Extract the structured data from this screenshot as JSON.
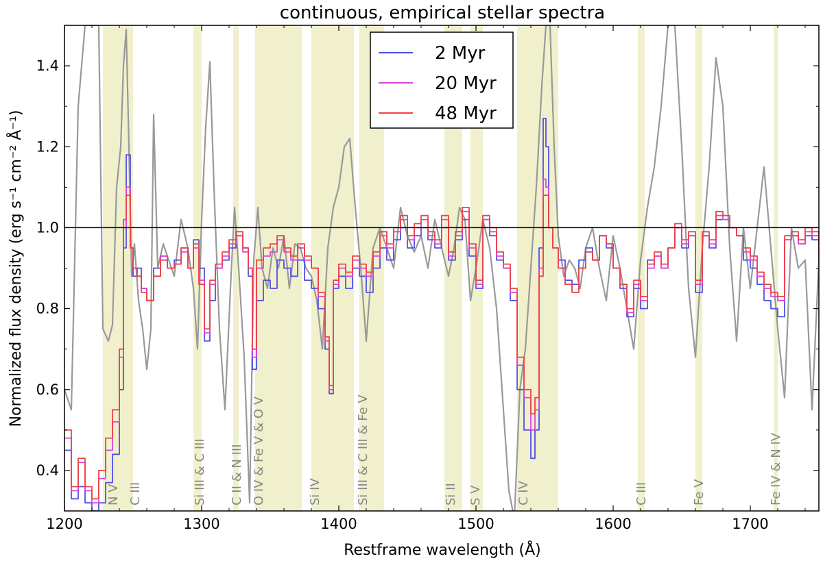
{
  "chart_data": {
    "type": "line",
    "title": "continuous, empirical stellar spectra",
    "xlabel": "Restframe wavelength (Å)",
    "ylabel": "Normalized flux density (erg s⁻¹ cm⁻² Å⁻¹)",
    "xlim": [
      1200,
      1750
    ],
    "ylim": [
      0.3,
      1.5
    ],
    "xticks": [
      1200,
      1300,
      1400,
      1500,
      1600,
      1700
    ],
    "yticks": [
      0.4,
      0.6,
      0.8,
      1.0,
      1.2,
      1.4
    ],
    "ytick_labels": [
      "0.4",
      "0.6",
      "0.8",
      "1.0",
      "1.2",
      "1.4"
    ],
    "reference_line": 1.0,
    "legend_position": "top-center",
    "colors": {
      "band": "#f0f0cc",
      "observed": "#999999",
      "reference": "#000000"
    },
    "bands": [
      {
        "x0": 1228,
        "x1": 1250,
        "label": "N V"
      },
      {
        "x0": 1228,
        "x1": 1250,
        "label": "C III"
      },
      {
        "x0": 1294,
        "x1": 1300,
        "label": "Si III & C III"
      },
      {
        "x0": 1323,
        "x1": 1327,
        "label": "C II & N III"
      },
      {
        "x0": 1339,
        "x1": 1373,
        "label": "O IV & Fe V & O V"
      },
      {
        "x0": 1380,
        "x1": 1411,
        "label": "Si IV"
      },
      {
        "x0": 1415,
        "x1": 1433,
        "label": "Si III & C III & Fe V"
      },
      {
        "x0": 1477,
        "x1": 1490,
        "label": "Si II"
      },
      {
        "x0": 1496,
        "x1": 1505,
        "label": "S V"
      },
      {
        "x0": 1530,
        "x1": 1560,
        "label": "C IV"
      },
      {
        "x0": 1618,
        "x1": 1623,
        "label": "C III"
      },
      {
        "x0": 1660,
        "x1": 1665,
        "label": "Fe V"
      },
      {
        "x0": 1717,
        "x1": 1720,
        "label": "Fe IV & N IV"
      }
    ],
    "band_label_x": [
      1235,
      1251,
      1298,
      1325,
      1341,
      1382,
      1417,
      1481,
      1499,
      1534,
      1620,
      1662,
      1718
    ],
    "series": [
      {
        "name": "observed",
        "legend": false,
        "color": "#999999",
        "x": [
          1200,
          1205,
          1210,
          1215,
          1220,
          1225,
          1228,
          1232,
          1235,
          1238,
          1241,
          1243,
          1245,
          1247,
          1249,
          1251,
          1254,
          1257,
          1260,
          1263,
          1265,
          1268,
          1272,
          1276,
          1280,
          1285,
          1290,
          1294,
          1297,
          1300,
          1303,
          1306,
          1309,
          1313,
          1317,
          1321,
          1324,
          1327,
          1331,
          1335,
          1338,
          1341,
          1344,
          1348,
          1352,
          1356,
          1360,
          1364,
          1368,
          1372,
          1376,
          1380,
          1384,
          1388,
          1392,
          1396,
          1400,
          1404,
          1408,
          1412,
          1416,
          1420,
          1425,
          1430,
          1435,
          1440,
          1445,
          1450,
          1455,
          1460,
          1465,
          1470,
          1475,
          1480,
          1484,
          1488,
          1492,
          1496,
          1500,
          1505,
          1510,
          1515,
          1520,
          1524,
          1528,
          1532,
          1536,
          1540,
          1544,
          1548,
          1551,
          1554,
          1557,
          1560,
          1564,
          1568,
          1572,
          1576,
          1580,
          1585,
          1590,
          1595,
          1600,
          1605,
          1610,
          1615,
          1620,
          1625,
          1630,
          1635,
          1640,
          1645,
          1650,
          1655,
          1660,
          1665,
          1670,
          1675,
          1680,
          1685,
          1690,
          1695,
          1700,
          1705,
          1710,
          1715,
          1720,
          1725,
          1730,
          1735,
          1740,
          1745,
          1750
        ],
        "y": [
          0.6,
          0.55,
          1.3,
          1.5,
          1.5,
          1.5,
          0.75,
          0.72,
          0.76,
          1.1,
          1.2,
          1.4,
          1.49,
          1.2,
          0.88,
          0.96,
          0.82,
          0.75,
          0.65,
          0.75,
          1.28,
          0.9,
          0.96,
          0.92,
          0.88,
          1.02,
          0.95,
          0.85,
          0.7,
          1.02,
          1.25,
          1.41,
          1.1,
          0.75,
          0.55,
          0.85,
          1.05,
          0.9,
          0.68,
          0.32,
          0.92,
          1.05,
          0.9,
          0.85,
          0.95,
          0.9,
          0.98,
          0.85,
          0.96,
          0.95,
          0.9,
          0.88,
          0.82,
          0.7,
          0.95,
          1.05,
          1.1,
          1.2,
          1.22,
          1.05,
          0.9,
          0.72,
          0.95,
          1.0,
          0.95,
          0.9,
          1.05,
          0.98,
          0.94,
          0.98,
          0.9,
          1.02,
          0.95,
          0.88,
          0.95,
          1.05,
          1.02,
          0.82,
          0.9,
          1.02,
          0.95,
          0.8,
          0.55,
          0.35,
          0.28,
          0.6,
          0.7,
          0.9,
          1.1,
          1.35,
          1.5,
          1.5,
          1.2,
          0.98,
          0.88,
          0.92,
          0.9,
          0.85,
          0.95,
          1.0,
          0.9,
          0.82,
          0.98,
          0.9,
          0.8,
          0.7,
          0.92,
          1.05,
          1.15,
          1.3,
          1.5,
          1.5,
          1.2,
          0.85,
          0.68,
          0.95,
          1.15,
          1.42,
          1.3,
          0.95,
          0.72,
          1.0,
          0.85,
          1.0,
          1.15,
          0.95,
          0.75,
          0.58,
          1.0,
          0.9,
          0.92,
          0.55,
          0.92
        ]
      },
      {
        "name": "2 Myr",
        "legend": true,
        "color": "#5050e8",
        "x": [
          1200,
          1205,
          1210,
          1215,
          1220,
          1225,
          1230,
          1235,
          1240,
          1243,
          1245,
          1248,
          1250,
          1253,
          1256,
          1260,
          1265,
          1270,
          1275,
          1280,
          1285,
          1290,
          1294,
          1298,
          1302,
          1306,
          1310,
          1315,
          1320,
          1325,
          1330,
          1334,
          1337,
          1340,
          1345,
          1350,
          1355,
          1360,
          1365,
          1370,
          1375,
          1380,
          1385,
          1390,
          1393,
          1396,
          1400,
          1405,
          1410,
          1415,
          1420,
          1425,
          1430,
          1435,
          1440,
          1445,
          1450,
          1455,
          1460,
          1465,
          1470,
          1475,
          1480,
          1485,
          1490,
          1495,
          1500,
          1505,
          1510,
          1515,
          1520,
          1525,
          1530,
          1535,
          1540,
          1543,
          1546,
          1549,
          1551,
          1553,
          1556,
          1560,
          1565,
          1570,
          1575,
          1580,
          1585,
          1590,
          1595,
          1600,
          1605,
          1610,
          1615,
          1620,
          1625,
          1630,
          1635,
          1640,
          1645,
          1650,
          1655,
          1660,
          1665,
          1670,
          1675,
          1680,
          1685,
          1690,
          1695,
          1700,
          1705,
          1710,
          1715,
          1720,
          1725,
          1730,
          1735,
          1740,
          1745,
          1750
        ],
        "y": [
          0.45,
          0.33,
          0.36,
          0.32,
          0.3,
          0.32,
          0.37,
          0.44,
          0.6,
          0.95,
          1.18,
          0.95,
          0.88,
          0.9,
          0.85,
          0.82,
          0.9,
          0.93,
          0.9,
          0.92,
          0.95,
          0.9,
          0.97,
          0.9,
          0.72,
          0.82,
          0.9,
          0.92,
          0.95,
          0.98,
          0.95,
          0.88,
          0.65,
          0.82,
          0.87,
          0.85,
          0.92,
          0.9,
          0.88,
          0.92,
          0.87,
          0.85,
          0.8,
          0.7,
          0.59,
          0.85,
          0.88,
          0.85,
          0.9,
          0.88,
          0.84,
          0.9,
          0.95,
          0.92,
          0.97,
          1.0,
          0.95,
          0.98,
          1.0,
          0.97,
          0.95,
          1.0,
          0.92,
          0.97,
          1.02,
          0.93,
          0.85,
          1.02,
          0.98,
          0.92,
          0.9,
          0.82,
          0.6,
          0.5,
          0.43,
          0.5,
          0.95,
          1.27,
          1.2,
          1.0,
          0.95,
          0.92,
          0.87,
          0.86,
          0.92,
          0.95,
          0.92,
          0.98,
          0.95,
          0.9,
          0.85,
          0.78,
          0.85,
          0.8,
          0.92,
          0.93,
          0.9,
          0.95,
          1.0,
          0.95,
          0.98,
          0.84,
          0.98,
          0.95,
          1.02,
          1.02,
          1.0,
          0.98,
          0.92,
          0.9,
          0.86,
          0.82,
          0.8,
          0.78,
          0.97,
          0.98,
          0.96,
          0.98,
          0.97,
          0.92
        ]
      },
      {
        "name": "20 Myr",
        "legend": true,
        "color": "#dd44dd",
        "x": [
          1200,
          1205,
          1210,
          1215,
          1220,
          1225,
          1230,
          1235,
          1240,
          1243,
          1245,
          1248,
          1250,
          1253,
          1256,
          1260,
          1265,
          1270,
          1275,
          1280,
          1285,
          1290,
          1294,
          1298,
          1302,
          1306,
          1310,
          1315,
          1320,
          1325,
          1330,
          1334,
          1337,
          1340,
          1345,
          1350,
          1355,
          1360,
          1365,
          1370,
          1375,
          1380,
          1385,
          1390,
          1393,
          1396,
          1400,
          1405,
          1410,
          1415,
          1420,
          1425,
          1430,
          1435,
          1440,
          1445,
          1450,
          1455,
          1460,
          1465,
          1470,
          1475,
          1480,
          1485,
          1490,
          1495,
          1500,
          1505,
          1510,
          1515,
          1520,
          1525,
          1530,
          1535,
          1540,
          1543,
          1546,
          1549,
          1551,
          1553,
          1556,
          1560,
          1565,
          1570,
          1575,
          1580,
          1585,
          1590,
          1595,
          1600,
          1605,
          1610,
          1615,
          1620,
          1625,
          1630,
          1635,
          1640,
          1645,
          1650,
          1655,
          1660,
          1665,
          1670,
          1675,
          1680,
          1685,
          1690,
          1695,
          1700,
          1705,
          1710,
          1715,
          1720,
          1725,
          1730,
          1735,
          1740,
          1745,
          1750
        ],
        "y": [
          0.48,
          0.35,
          0.42,
          0.35,
          0.32,
          0.38,
          0.45,
          0.52,
          0.68,
          1.0,
          1.1,
          0.95,
          0.9,
          0.88,
          0.85,
          0.82,
          0.88,
          0.93,
          0.9,
          0.91,
          0.94,
          0.9,
          0.95,
          0.87,
          0.74,
          0.86,
          0.9,
          0.93,
          0.96,
          0.98,
          0.94,
          0.9,
          0.68,
          0.9,
          0.93,
          0.94,
          0.97,
          0.94,
          0.92,
          0.95,
          0.92,
          0.9,
          0.83,
          0.72,
          0.6,
          0.86,
          0.9,
          0.88,
          0.92,
          0.9,
          0.88,
          0.93,
          0.98,
          0.95,
          0.99,
          1.02,
          0.97,
          1.0,
          1.02,
          0.98,
          0.96,
          1.02,
          0.93,
          0.98,
          1.04,
          0.95,
          0.86,
          1.02,
          0.99,
          0.93,
          0.9,
          0.84,
          0.66,
          0.58,
          0.5,
          0.55,
          0.9,
          1.12,
          1.1,
          1.0,
          0.95,
          0.9,
          0.86,
          0.84,
          0.9,
          0.94,
          0.92,
          0.98,
          0.96,
          0.9,
          0.86,
          0.79,
          0.86,
          0.82,
          0.9,
          0.93,
          0.9,
          0.95,
          1.0,
          0.96,
          0.98,
          0.86,
          0.98,
          0.96,
          1.03,
          1.02,
          1.0,
          0.98,
          0.94,
          0.92,
          0.88,
          0.85,
          0.83,
          0.82,
          0.97,
          0.98,
          0.96,
          0.99,
          0.98,
          0.93
        ]
      },
      {
        "name": "48 Myr",
        "legend": true,
        "color": "#ee4444",
        "x": [
          1200,
          1205,
          1210,
          1215,
          1220,
          1225,
          1230,
          1235,
          1240,
          1243,
          1245,
          1248,
          1250,
          1253,
          1256,
          1260,
          1265,
          1270,
          1275,
          1280,
          1285,
          1290,
          1294,
          1298,
          1302,
          1306,
          1310,
          1315,
          1320,
          1325,
          1330,
          1334,
          1337,
          1340,
          1345,
          1350,
          1355,
          1360,
          1365,
          1370,
          1375,
          1380,
          1385,
          1390,
          1393,
          1396,
          1400,
          1405,
          1410,
          1415,
          1420,
          1425,
          1430,
          1435,
          1440,
          1445,
          1450,
          1455,
          1460,
          1465,
          1470,
          1475,
          1480,
          1485,
          1490,
          1495,
          1500,
          1505,
          1510,
          1515,
          1520,
          1525,
          1530,
          1535,
          1540,
          1543,
          1546,
          1549,
          1551,
          1553,
          1556,
          1560,
          1565,
          1570,
          1575,
          1580,
          1585,
          1590,
          1595,
          1600,
          1605,
          1610,
          1615,
          1620,
          1625,
          1630,
          1635,
          1640,
          1645,
          1650,
          1655,
          1660,
          1665,
          1670,
          1675,
          1680,
          1685,
          1690,
          1695,
          1700,
          1705,
          1710,
          1715,
          1720,
          1725,
          1730,
          1735,
          1740,
          1745,
          1750
        ],
        "y": [
          0.5,
          0.36,
          0.43,
          0.36,
          0.33,
          0.4,
          0.48,
          0.55,
          0.7,
          1.02,
          1.08,
          0.95,
          0.9,
          0.88,
          0.84,
          0.82,
          0.88,
          0.92,
          0.9,
          0.91,
          0.95,
          0.9,
          0.96,
          0.86,
          0.75,
          0.87,
          0.91,
          0.94,
          0.97,
          0.99,
          0.95,
          0.9,
          0.7,
          0.92,
          0.95,
          0.96,
          0.98,
          0.95,
          0.93,
          0.96,
          0.93,
          0.9,
          0.84,
          0.73,
          0.61,
          0.87,
          0.91,
          0.89,
          0.93,
          0.91,
          0.89,
          0.94,
          0.99,
          0.96,
          1.0,
          1.03,
          0.98,
          1.01,
          1.03,
          0.99,
          0.97,
          1.03,
          0.94,
          0.99,
          1.05,
          0.96,
          0.87,
          1.03,
          1.0,
          0.94,
          0.91,
          0.85,
          0.68,
          0.6,
          0.54,
          0.58,
          0.88,
          1.08,
          1.08,
          1.0,
          0.95,
          0.9,
          0.86,
          0.84,
          0.9,
          0.94,
          0.92,
          0.98,
          0.96,
          0.9,
          0.86,
          0.8,
          0.87,
          0.83,
          0.91,
          0.94,
          0.91,
          0.95,
          1.01,
          0.97,
          0.99,
          0.87,
          0.99,
          0.97,
          1.04,
          1.03,
          1.0,
          0.98,
          0.95,
          0.93,
          0.89,
          0.86,
          0.84,
          0.83,
          0.98,
          0.99,
          0.97,
          1.0,
          0.99,
          0.94
        ]
      }
    ]
  }
}
